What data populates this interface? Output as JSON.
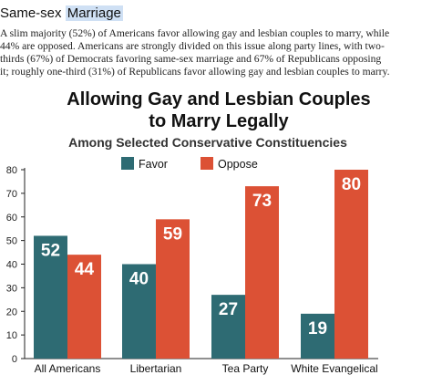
{
  "section": {
    "heading_plain": "Same-sex ",
    "heading_highlight": "Marriage",
    "intro_lines": [
      "A slim majority (52%) of Americans favor allowing gay and lesbian couples to marry, while",
      "44% are opposed. Americans are strongly divided on this issue along party lines, with two-",
      "thirds (67%) of Democrats favoring same-sex marriage and 67% of Republicans opposing",
      "it; roughly one-third (31%) of Republicans favor allowing gay and lesbian couples to marry."
    ]
  },
  "chart_data": {
    "type": "bar",
    "title_lines": [
      "Allowing Gay and Lesbian Couples",
      "to Marry Legally"
    ],
    "subtitle": "Among Selected Conservative Constituencies",
    "categories": [
      "All Americans",
      "Libertarian",
      "Tea Party",
      "White Evangelical"
    ],
    "series": [
      {
        "name": "Favor",
        "values": [
          52,
          40,
          27,
          19
        ],
        "color": "#2e6b73"
      },
      {
        "name": "Oppose",
        "values": [
          44,
          59,
          73,
          80
        ],
        "color": "#dc5135"
      }
    ],
    "ylim": [
      0,
      80
    ],
    "yticks": [
      0,
      10,
      20,
      30,
      40,
      50,
      60,
      70,
      80
    ],
    "grid": false,
    "legend": "top-center",
    "xlabel": "",
    "ylabel": ""
  }
}
